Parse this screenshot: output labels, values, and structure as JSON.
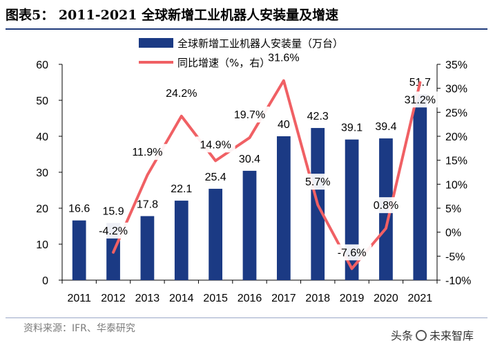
{
  "figure_title": "图表5：  2011-2021 全球新增工业机器人安装量及增速",
  "source_text": "资料来源：IFR、华泰研究",
  "watermark": {
    "prefix": "头条",
    "name": "未来智库"
  },
  "colors": {
    "bar": "#1b3a84",
    "line": "#f06064",
    "rule": "#1f3a7a"
  },
  "chart_data": {
    "type": "bar+line",
    "categories": [
      "2011",
      "2012",
      "2013",
      "2014",
      "2015",
      "2016",
      "2017",
      "2018",
      "2019",
      "2020",
      "2021"
    ],
    "series": [
      {
        "name": "全球新增工业机器人安装量（万台）",
        "type": "bar",
        "axis": "left",
        "values": [
          16.6,
          15.9,
          17.8,
          22.1,
          25.4,
          30.4,
          40,
          42.3,
          39.1,
          39.4,
          51.7
        ],
        "labels": [
          "16.6",
          "15.9",
          "17.8",
          "22.1",
          "25.4",
          "30.4",
          "40",
          "42.3",
          "39.1",
          "39.4",
          "51.7"
        ]
      },
      {
        "name": "同比增速（%，右）",
        "type": "line",
        "axis": "right",
        "values": [
          null,
          -4.2,
          11.9,
          24.2,
          14.9,
          19.7,
          31.6,
          5.7,
          -7.6,
          0.8,
          31.2
        ],
        "labels": [
          "",
          "-4.2%",
          "11.9%",
          "24.2%",
          "14.9%",
          "19.7%",
          "31.6%",
          "5.7%",
          "-7.6%",
          "0.8%",
          "31.2%"
        ]
      }
    ],
    "y_left": {
      "min": 0,
      "max": 60,
      "ticks": [
        "0",
        "10",
        "20",
        "30",
        "40",
        "50",
        "60"
      ]
    },
    "y_right": {
      "min": -10,
      "max": 35,
      "ticks": [
        "-10%",
        "-5%",
        "0%",
        "5%",
        "10%",
        "15%",
        "20%",
        "25%",
        "30%",
        "35%"
      ]
    },
    "legend_position": "top",
    "grid": false
  }
}
